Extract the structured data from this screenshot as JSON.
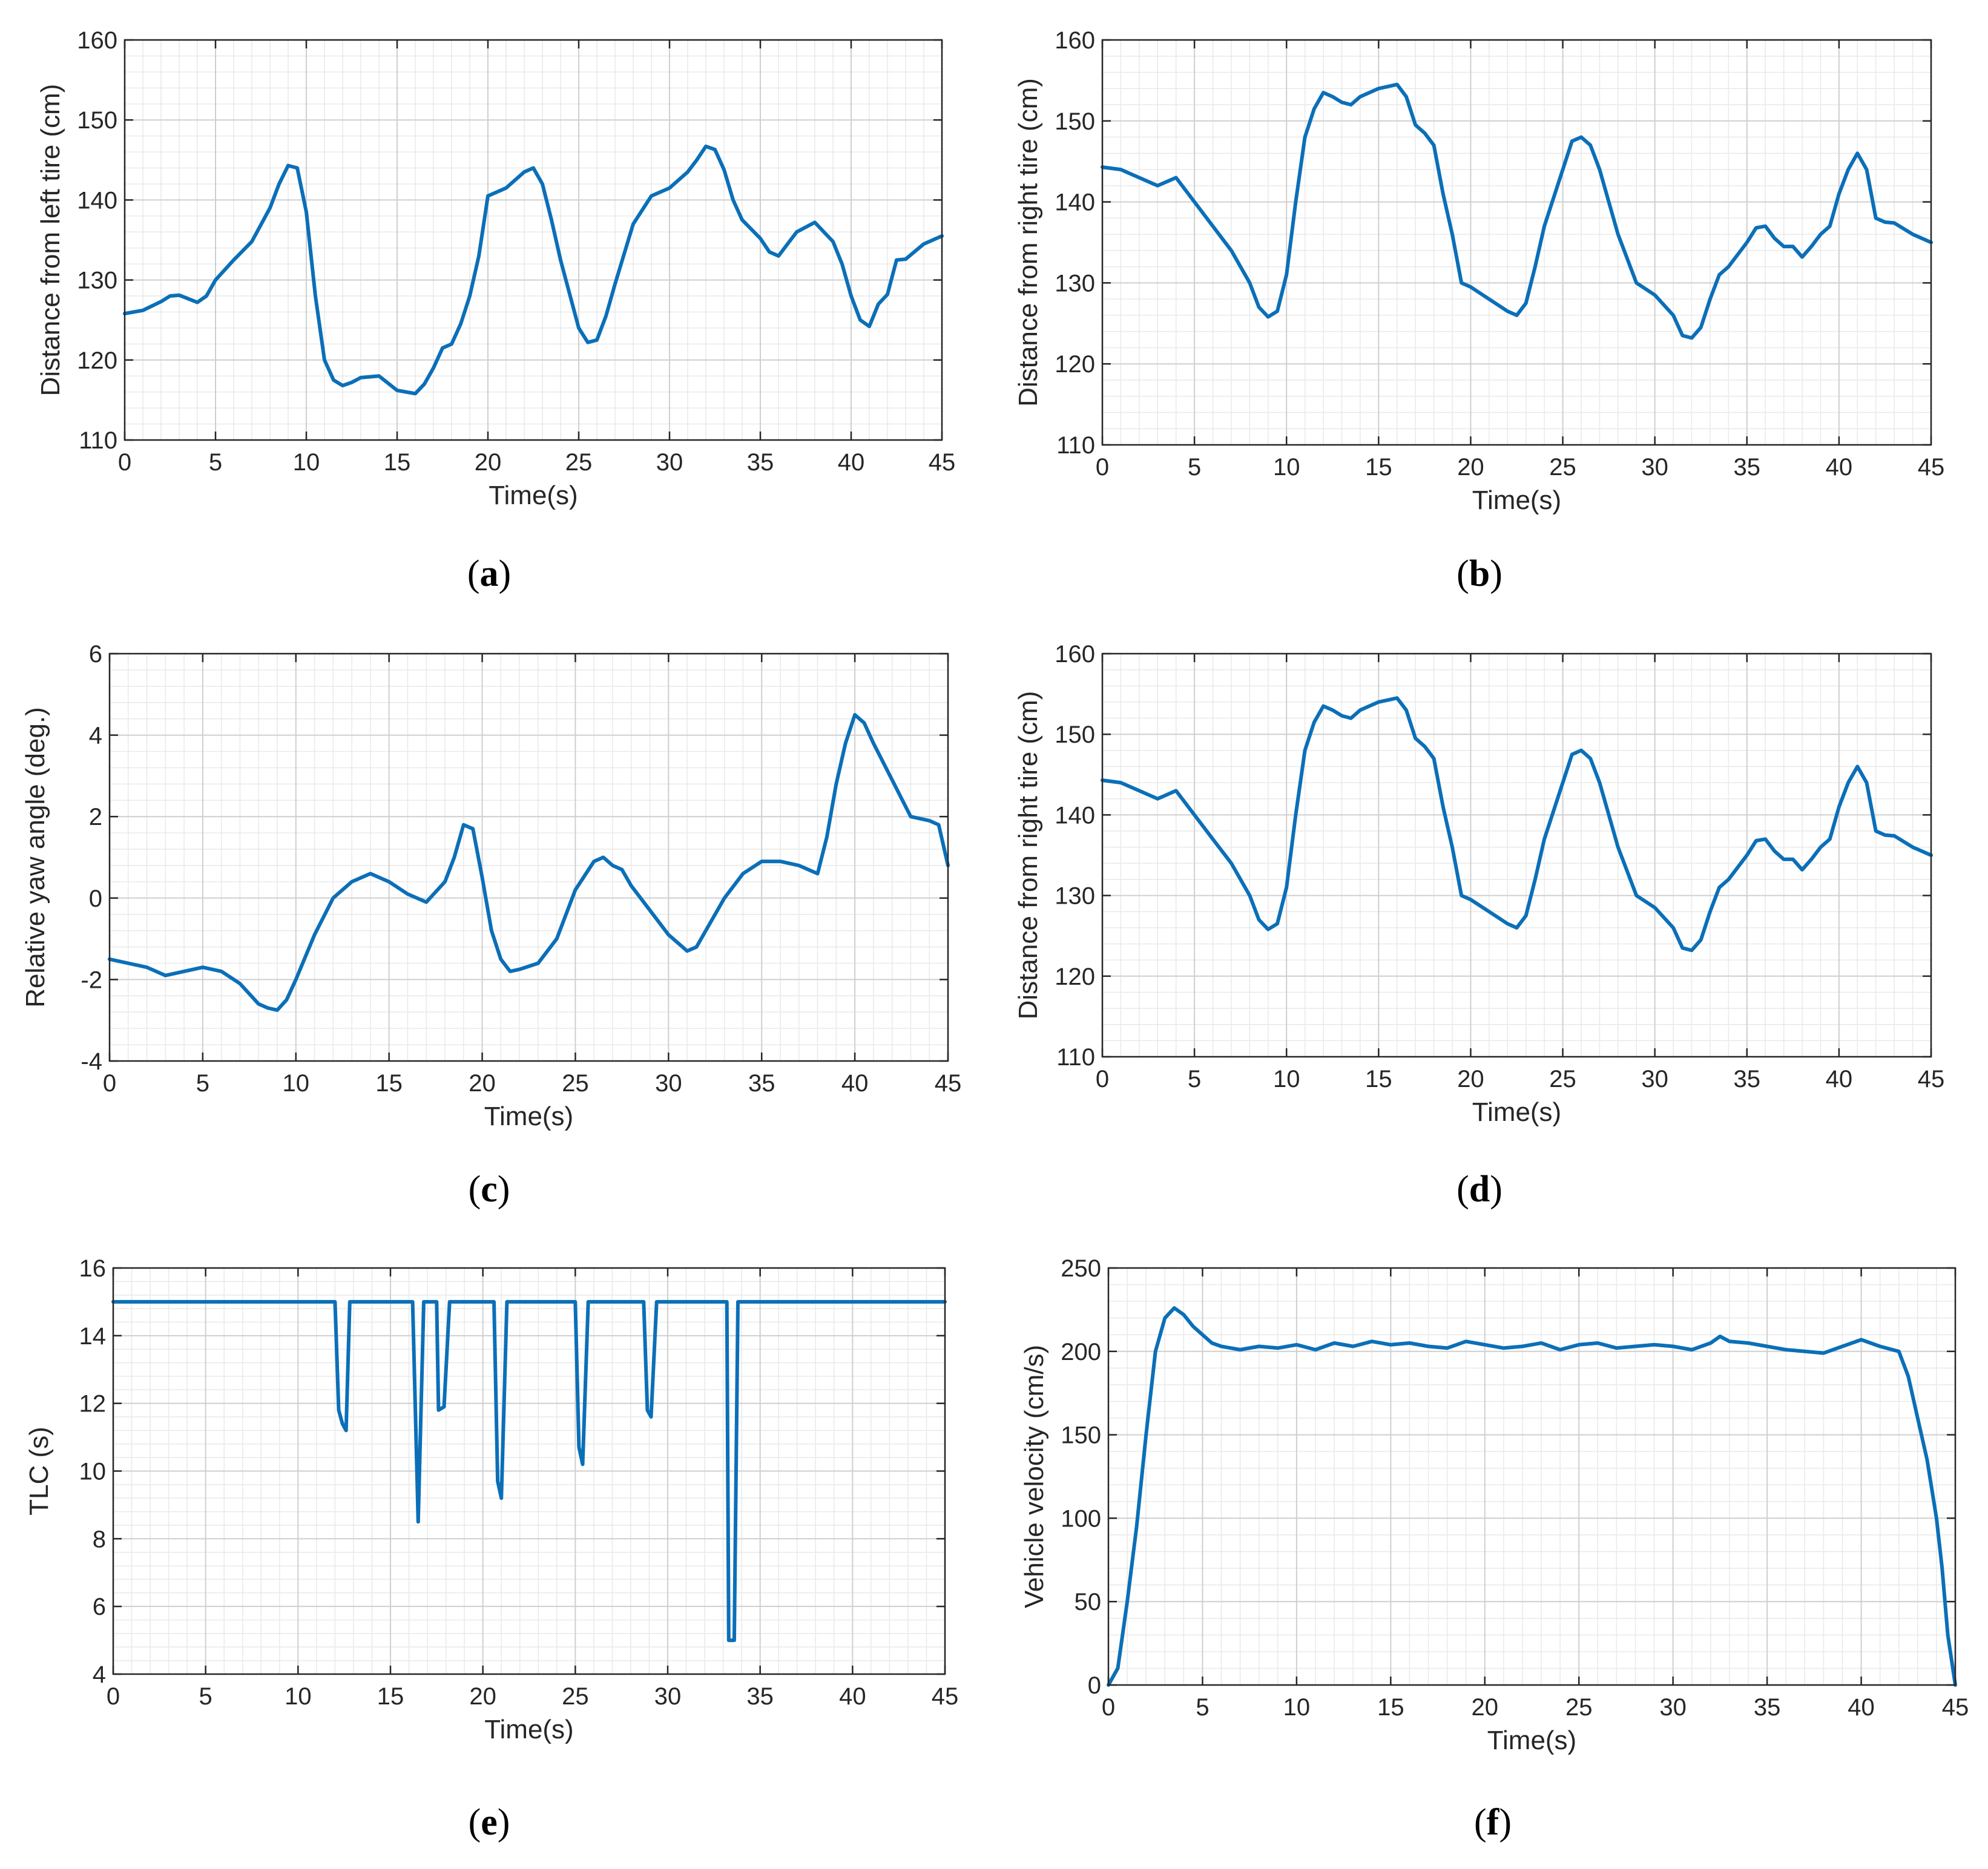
{
  "figure": {
    "colors": {
      "line": "#0b6fb8",
      "axis": "#262626",
      "grid_minor": "#e9e9e9",
      "grid_major": "#cfcfcf",
      "background": "#ffffff"
    }
  },
  "chart_data": [
    {
      "id": "a",
      "type": "line",
      "caption": "a",
      "xlabel": "Time(s)",
      "ylabel": "Distance from left tire (cm)",
      "xlim": [
        0,
        45
      ],
      "ylim": [
        110,
        160
      ],
      "xticks": [
        0,
        5,
        10,
        15,
        20,
        25,
        30,
        35,
        40,
        45
      ],
      "yticks": [
        110,
        120,
        130,
        140,
        150,
        160
      ],
      "x_tick_labels": [
        "0",
        "5",
        "10",
        "15",
        "20",
        "25",
        "30",
        "35",
        "40",
        "45"
      ],
      "y_tick_labels": [
        "110",
        "120",
        "130",
        "140",
        "150",
        "160"
      ],
      "grid": "on (major and minor)",
      "series": [
        {
          "name": "Distance from left tire",
          "x": [
            0,
            1,
            2,
            2.5,
            3,
            4,
            4.5,
            5,
            6,
            7,
            8,
            8.5,
            9,
            9.5,
            10,
            10.5,
            11,
            11.5,
            12,
            12.5,
            13,
            14,
            15,
            16,
            16.5,
            17,
            17.5,
            18,
            18.5,
            19,
            19.5,
            20,
            21,
            22,
            22.5,
            23,
            23.5,
            24,
            25,
            25.5,
            26,
            26.5,
            27,
            28,
            29,
            30,
            31,
            31.5,
            32,
            32.5,
            33,
            33.5,
            34,
            35,
            35.5,
            36,
            36.5,
            37,
            38,
            38.5,
            39,
            39.5,
            40,
            40.5,
            41,
            41.5,
            42,
            42.5,
            43,
            44,
            45
          ],
          "y": [
            125.8,
            126.2,
            127.3,
            128.0,
            128.1,
            127.2,
            128.0,
            130.0,
            132.5,
            134.8,
            139.0,
            142.0,
            144.3,
            144.0,
            138.5,
            128.0,
            120.0,
            117.5,
            116.8,
            117.2,
            117.8,
            118.0,
            116.2,
            115.8,
            117.0,
            119.0,
            121.5,
            122.0,
            124.5,
            128.0,
            133.0,
            140.5,
            141.5,
            143.5,
            144.0,
            142.0,
            137.5,
            132.5,
            124.0,
            122.2,
            122.5,
            125.5,
            129.5,
            137.0,
            140.5,
            141.5,
            143.5,
            145.0,
            146.7,
            146.3,
            143.8,
            140.0,
            137.5,
            135.2,
            133.5,
            133.0,
            134.5,
            136.0,
            137.2,
            136.0,
            134.8,
            132.0,
            128.0,
            125.0,
            124.2,
            127.0,
            128.2,
            132.5,
            132.6,
            134.5,
            135.5
          ]
        }
      ]
    },
    {
      "id": "b",
      "type": "line",
      "caption": "b",
      "xlabel": "Time(s)",
      "ylabel": "Distance from right tire (cm)",
      "xlim": [
        0,
        45
      ],
      "ylim": [
        110,
        160
      ],
      "xticks": [
        0,
        5,
        10,
        15,
        20,
        25,
        30,
        35,
        40,
        45
      ],
      "yticks": [
        110,
        120,
        130,
        140,
        150,
        160
      ],
      "x_tick_labels": [
        "0",
        "5",
        "10",
        "15",
        "20",
        "25",
        "30",
        "35",
        "40",
        "45"
      ],
      "y_tick_labels": [
        "110",
        "120",
        "130",
        "140",
        "150",
        "160"
      ],
      "grid": "on (major and minor)",
      "series": [
        {
          "name": "Distance from right tire",
          "x": [
            0,
            1,
            2,
            3,
            4,
            5,
            6,
            7,
            8,
            8.5,
            9,
            9.5,
            10,
            10.5,
            11,
            11.5,
            12,
            12.5,
            13,
            13.5,
            14,
            15,
            16,
            16.5,
            17,
            17.5,
            18,
            18.5,
            19,
            19.5,
            20,
            21,
            22,
            22.5,
            23,
            23.5,
            24,
            25,
            25.5,
            26,
            26.5,
            27,
            28,
            29,
            30,
            31,
            31.5,
            32,
            32.5,
            33,
            33.5,
            34,
            35,
            35.5,
            36,
            36.5,
            37,
            37.5,
            38,
            38.5,
            39,
            39.5,
            40,
            40.5,
            41,
            41.5,
            42,
            42.5,
            43,
            44,
            45
          ],
          "y": [
            144.3,
            144.0,
            143.0,
            142.0,
            143.0,
            140.0,
            137.0,
            134.0,
            130.0,
            127.0,
            125.8,
            126.5,
            131.0,
            140.0,
            148.0,
            151.5,
            153.5,
            153.0,
            152.3,
            152.0,
            153.0,
            154.0,
            154.5,
            153.0,
            149.5,
            148.5,
            147.0,
            141.0,
            136.0,
            130.0,
            129.5,
            128.0,
            126.5,
            126.0,
            127.5,
            132.0,
            137.0,
            144.0,
            147.5,
            148.0,
            147.0,
            144.0,
            136.0,
            130.0,
            128.5,
            126.0,
            123.5,
            123.2,
            124.5,
            128.0,
            131.0,
            132.0,
            135.0,
            136.8,
            137.0,
            135.5,
            134.5,
            134.5,
            133.2,
            134.5,
            136.0,
            137.0,
            141.0,
            144.0,
            146.0,
            144.0,
            138.0,
            137.5,
            137.4,
            136.0,
            135.0
          ]
        }
      ]
    },
    {
      "id": "c",
      "type": "line",
      "caption": "c",
      "xlabel": "Time(s)",
      "ylabel": "Relative yaw angle (deg.)",
      "xlim": [
        0,
        45
      ],
      "ylim": [
        -4,
        6
      ],
      "xticks": [
        0,
        5,
        10,
        15,
        20,
        25,
        30,
        35,
        40,
        45
      ],
      "yticks": [
        -4,
        -2,
        0,
        2,
        4,
        6
      ],
      "x_tick_labels": [
        "0",
        "5",
        "10",
        "15",
        "20",
        "25",
        "30",
        "35",
        "40",
        "45"
      ],
      "y_tick_labels": [
        "-4",
        "-2",
        "0",
        "2",
        "4",
        "6"
      ],
      "grid": "on (major and minor)",
      "series": [
        {
          "name": "Relative yaw angle",
          "x": [
            0,
            1,
            2,
            3,
            4,
            5,
            6,
            7,
            8,
            8.5,
            9,
            9.5,
            10,
            11,
            12,
            13,
            14,
            15,
            16,
            17,
            18,
            18.5,
            19,
            19.5,
            20,
            20.5,
            21,
            21.5,
            22,
            23,
            24,
            25,
            26,
            26.5,
            27,
            27.5,
            28,
            29,
            30,
            31,
            31.5,
            32,
            33,
            34,
            35,
            36,
            37,
            37.5,
            38,
            38.5,
            39,
            39.5,
            40,
            40.5,
            41,
            42,
            43,
            44,
            44.5,
            45
          ],
          "y": [
            -1.5,
            -1.6,
            -1.7,
            -1.9,
            -1.8,
            -1.7,
            -1.8,
            -2.1,
            -2.6,
            -2.7,
            -2.75,
            -2.5,
            -2.0,
            -0.9,
            0.0,
            0.4,
            0.6,
            0.4,
            0.1,
            -0.1,
            0.4,
            1.0,
            1.8,
            1.7,
            0.5,
            -0.8,
            -1.5,
            -1.8,
            -1.75,
            -1.6,
            -1.0,
            0.2,
            0.9,
            1.0,
            0.8,
            0.7,
            0.3,
            -0.3,
            -0.9,
            -1.3,
            -1.2,
            -0.8,
            0.0,
            0.6,
            0.9,
            0.9,
            0.8,
            0.7,
            0.6,
            1.5,
            2.8,
            3.8,
            4.5,
            4.3,
            3.8,
            2.9,
            2.0,
            1.9,
            1.8,
            0.8
          ]
        }
      ]
    },
    {
      "id": "d",
      "type": "line",
      "caption": "d",
      "xlabel": "Time(s)",
      "ylabel": "Distance from right tire (cm)",
      "xlim": [
        0,
        45
      ],
      "ylim": [
        110,
        160
      ],
      "xticks": [
        0,
        5,
        10,
        15,
        20,
        25,
        30,
        35,
        40,
        45
      ],
      "yticks": [
        110,
        120,
        130,
        140,
        150,
        160
      ],
      "x_tick_labels": [
        "0",
        "5",
        "10",
        "15",
        "20",
        "25",
        "30",
        "35",
        "40",
        "45"
      ],
      "y_tick_labels": [
        "110",
        "120",
        "130",
        "140",
        "150",
        "160"
      ],
      "grid": "on (major and minor)",
      "series": [
        {
          "name": "Distance from right tire",
          "x": [
            0,
            1,
            2,
            3,
            4,
            5,
            6,
            7,
            8,
            8.5,
            9,
            9.5,
            10,
            10.5,
            11,
            11.5,
            12,
            12.5,
            13,
            13.5,
            14,
            15,
            16,
            16.5,
            17,
            17.5,
            18,
            18.5,
            19,
            19.5,
            20,
            21,
            22,
            22.5,
            23,
            23.5,
            24,
            25,
            25.5,
            26,
            26.5,
            27,
            28,
            29,
            30,
            31,
            31.5,
            32,
            32.5,
            33,
            33.5,
            34,
            35,
            35.5,
            36,
            36.5,
            37,
            37.5,
            38,
            38.5,
            39,
            39.5,
            40,
            40.5,
            41,
            41.5,
            42,
            42.5,
            43,
            44,
            45
          ],
          "y": [
            144.3,
            144.0,
            143.0,
            142.0,
            143.0,
            140.0,
            137.0,
            134.0,
            130.0,
            127.0,
            125.8,
            126.5,
            131.0,
            140.0,
            148.0,
            151.5,
            153.5,
            153.0,
            152.3,
            152.0,
            153.0,
            154.0,
            154.5,
            153.0,
            149.5,
            148.5,
            147.0,
            141.0,
            136.0,
            130.0,
            129.5,
            128.0,
            126.5,
            126.0,
            127.5,
            132.0,
            137.0,
            144.0,
            147.5,
            148.0,
            147.0,
            144.0,
            136.0,
            130.0,
            128.5,
            126.0,
            123.5,
            123.2,
            124.5,
            128.0,
            131.0,
            132.0,
            135.0,
            136.8,
            137.0,
            135.5,
            134.5,
            134.5,
            133.2,
            134.5,
            136.0,
            137.0,
            141.0,
            144.0,
            146.0,
            144.0,
            138.0,
            137.5,
            137.4,
            136.0,
            135.0
          ]
        }
      ]
    },
    {
      "id": "e",
      "type": "line",
      "caption": "e",
      "xlabel": "Time(s)",
      "ylabel": "TLC (s)",
      "xlim": [
        0,
        45
      ],
      "ylim": [
        4,
        16
      ],
      "xticks": [
        0,
        5,
        10,
        15,
        20,
        25,
        30,
        35,
        40,
        45
      ],
      "yticks": [
        4,
        6,
        8,
        10,
        12,
        14,
        16
      ],
      "x_tick_labels": [
        "0",
        "5",
        "10",
        "15",
        "20",
        "25",
        "30",
        "35",
        "40",
        "45"
      ],
      "y_tick_labels": [
        "4",
        "6",
        "8",
        "10",
        "12",
        "14",
        "16"
      ],
      "grid": "on (major and minor)",
      "series": [
        {
          "name": "TLC",
          "x": [
            0,
            12.0,
            12.2,
            12.4,
            12.6,
            12.8,
            13.0,
            16.2,
            16.5,
            16.8,
            17.5,
            17.6,
            17.9,
            18.2,
            20.6,
            20.8,
            21.0,
            21.3,
            25.0,
            25.2,
            25.4,
            25.7,
            28.7,
            28.9,
            29.1,
            29.4,
            33.2,
            33.3,
            33.6,
            33.8,
            45
          ],
          "y": [
            15,
            15,
            11.8,
            11.4,
            11.2,
            15,
            15,
            15,
            8.5,
            15,
            15,
            11.8,
            11.9,
            15,
            15,
            9.7,
            9.2,
            15,
            15,
            10.7,
            10.2,
            15,
            15,
            11.8,
            11.6,
            15,
            15,
            5.0,
            5.0,
            15,
            15
          ]
        }
      ]
    },
    {
      "id": "f",
      "type": "line",
      "caption": "f",
      "xlabel": "Time(s)",
      "ylabel": "Vehicle velocity (cm/s)",
      "xlim": [
        0,
        45
      ],
      "ylim": [
        0,
        250
      ],
      "xticks": [
        0,
        5,
        10,
        15,
        20,
        25,
        30,
        35,
        40,
        45
      ],
      "yticks": [
        0,
        50,
        100,
        150,
        200,
        250
      ],
      "x_tick_labels": [
        "0",
        "5",
        "10",
        "15",
        "20",
        "25",
        "30",
        "35",
        "40",
        "45"
      ],
      "y_tick_labels": [
        "0",
        "50",
        "100",
        "150",
        "200",
        "250"
      ],
      "grid": "on (major and minor)",
      "series": [
        {
          "name": "Vehicle velocity",
          "x": [
            0,
            0.5,
            1.0,
            1.5,
            2.0,
            2.5,
            3.0,
            3.5,
            4.0,
            4.5,
            5.0,
            5.5,
            6,
            7,
            8,
            9,
            10,
            11,
            12,
            13,
            14,
            15,
            16,
            17,
            18,
            19,
            20,
            21,
            22,
            23,
            24,
            25,
            26,
            27,
            28,
            29,
            30,
            31,
            32,
            32.5,
            33,
            34,
            35,
            36,
            37,
            38,
            39,
            40,
            41,
            42,
            42.5,
            43,
            43.5,
            44,
            44.3,
            44.6,
            45
          ],
          "y": [
            0,
            10,
            50,
            95,
            150,
            200,
            220,
            226,
            222,
            215,
            210,
            205,
            203,
            201,
            203,
            202,
            204,
            201,
            205,
            203,
            206,
            204,
            205,
            203,
            202,
            206,
            204,
            202,
            203,
            205,
            201,
            204,
            205,
            202,
            203,
            204,
            203,
            201,
            205,
            209,
            206,
            205,
            203,
            201,
            200,
            199,
            203,
            207,
            203,
            200,
            185,
            160,
            135,
            100,
            70,
            30,
            0
          ]
        }
      ]
    }
  ]
}
